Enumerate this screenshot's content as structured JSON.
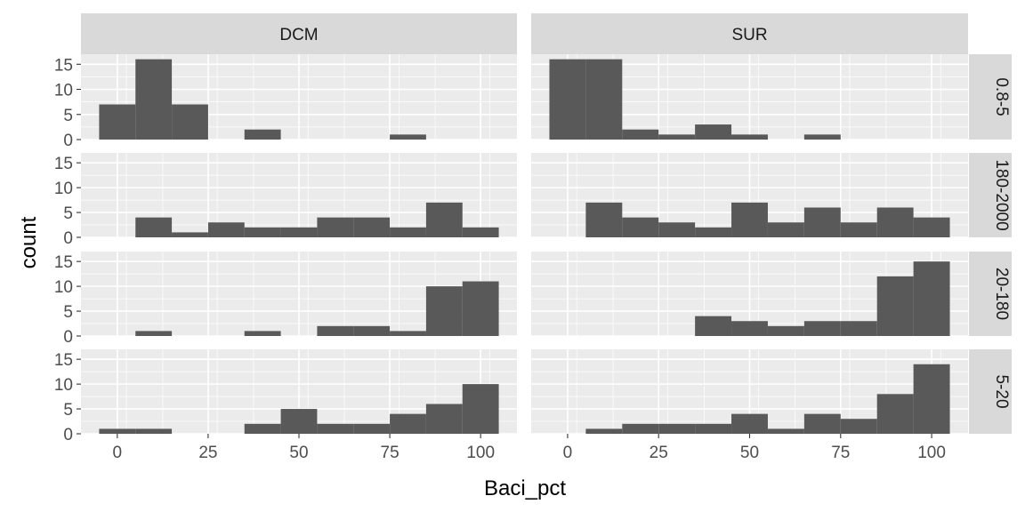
{
  "chart_data": {
    "type": "bar",
    "kind": "faceted-histogram",
    "xlabel": "Baci_pct",
    "ylabel": "count",
    "xlim": [
      -10,
      110
    ],
    "ylim": [
      0,
      17
    ],
    "x_ticks": [
      0,
      25,
      50,
      75,
      100
    ],
    "y_ticks": [
      0,
      5,
      10,
      15
    ],
    "bin_width": 10,
    "bin_centers": [
      0,
      10,
      20,
      30,
      40,
      50,
      60,
      70,
      80,
      90,
      100
    ],
    "columns": [
      "DCM",
      "SUR"
    ],
    "rows": [
      "0.8-5",
      "180-2000",
      "20-180",
      "5-20"
    ],
    "bar_color": "#595959",
    "panel_background": "#ebebeb",
    "strip_background": "#d9d9d9",
    "grid": true,
    "panels": [
      {
        "col": "DCM",
        "row": "0.8-5",
        "values": [
          7,
          16,
          7,
          0,
          2,
          0,
          0,
          0,
          1,
          0,
          0
        ]
      },
      {
        "col": "SUR",
        "row": "0.8-5",
        "values": [
          16,
          16,
          2,
          1,
          3,
          1,
          0,
          1,
          0,
          0,
          0
        ]
      },
      {
        "col": "DCM",
        "row": "180-2000",
        "values": [
          0,
          4,
          1,
          3,
          2,
          2,
          4,
          4,
          2,
          7,
          2
        ]
      },
      {
        "col": "SUR",
        "row": "180-2000",
        "values": [
          0,
          7,
          4,
          3,
          2,
          7,
          3,
          6,
          3,
          6,
          4
        ]
      },
      {
        "col": "DCM",
        "row": "20-180",
        "values": [
          0,
          1,
          0,
          0,
          1,
          0,
          2,
          2,
          1,
          10,
          11
        ]
      },
      {
        "col": "SUR",
        "row": "20-180",
        "values": [
          0,
          0,
          0,
          0,
          4,
          3,
          2,
          3,
          3,
          12,
          15
        ]
      },
      {
        "col": "DCM",
        "row": "5-20",
        "values": [
          1,
          1,
          0,
          0,
          2,
          5,
          2,
          2,
          4,
          6,
          10
        ]
      },
      {
        "col": "SUR",
        "row": "5-20",
        "values": [
          0,
          1,
          2,
          2,
          2,
          4,
          1,
          4,
          3,
          8,
          14
        ]
      }
    ]
  }
}
